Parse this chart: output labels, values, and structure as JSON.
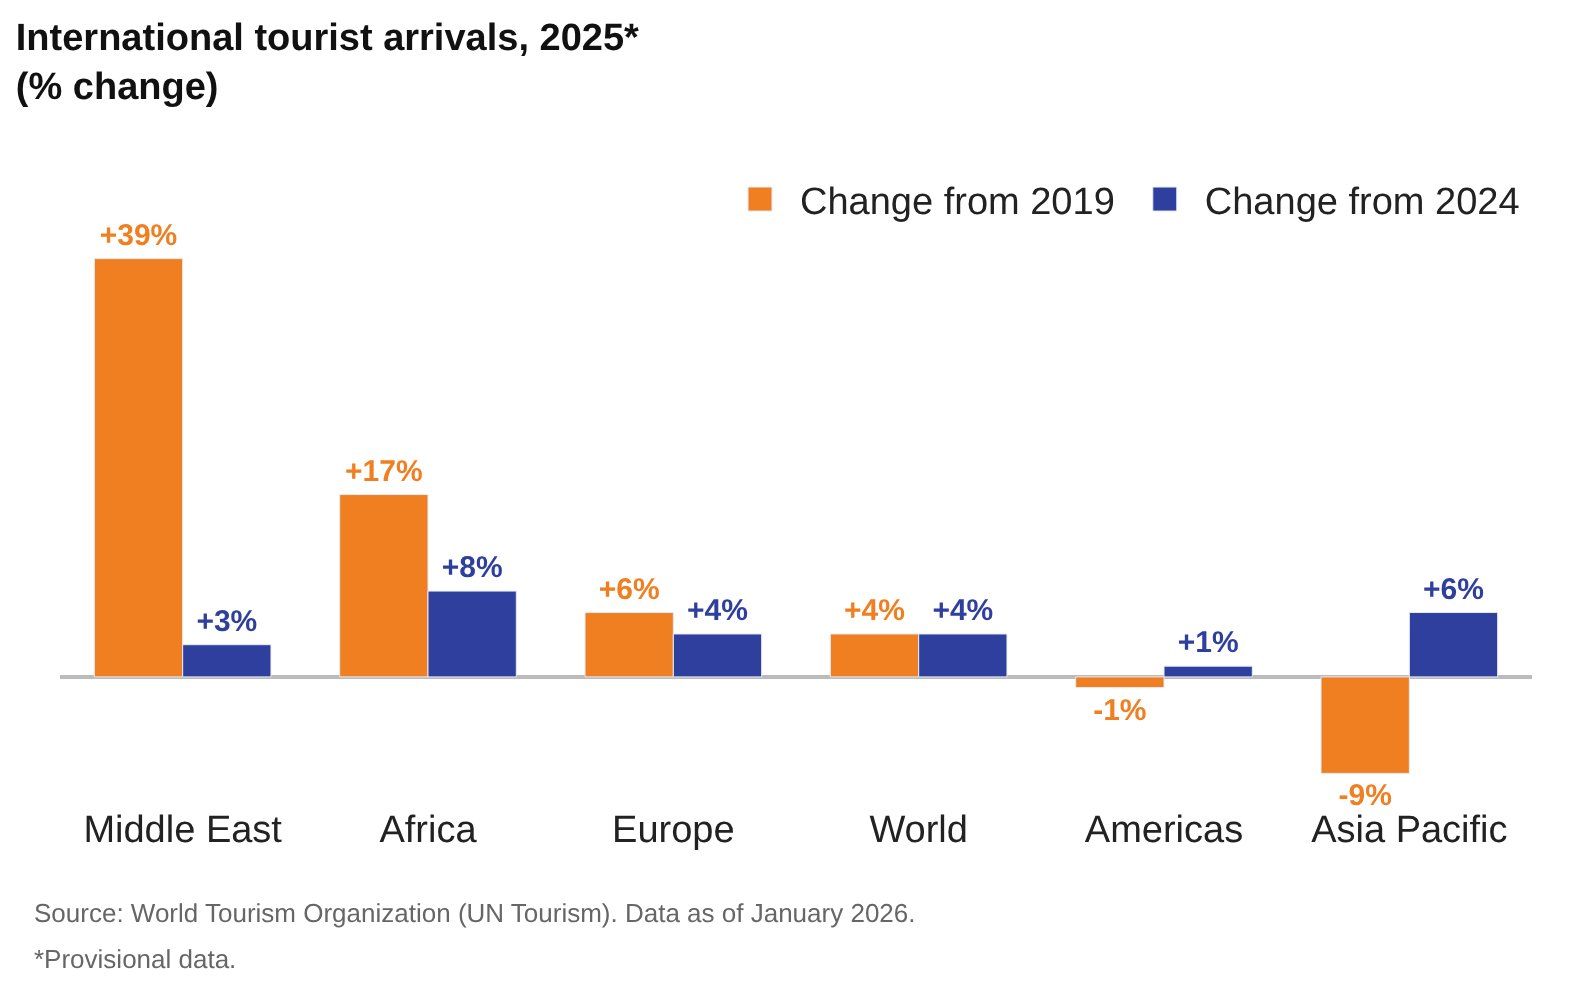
{
  "chart_data": {
    "type": "bar",
    "title": "International tourist arrivals, 2025*\n(% change)",
    "categories": [
      "Middle East",
      "Africa",
      "Europe",
      "World",
      "Americas",
      "Asia Pacific"
    ],
    "series": [
      {
        "name": "Change from 2019",
        "color": "#f07f22",
        "values": [
          39,
          17,
          6,
          4,
          -1,
          -9
        ],
        "value_labels": [
          "+39%",
          "+17%",
          "+6%",
          "+4%",
          "-1%",
          "-9%"
        ]
      },
      {
        "name": "Change from 2024",
        "color": "#2e3f9e",
        "values": [
          3,
          8,
          4,
          4,
          1,
          6
        ],
        "value_labels": [
          "+3%",
          "+8%",
          "+4%",
          "+4%",
          "+1%",
          "+6%"
        ]
      }
    ],
    "tick_labels": "x",
    "legend": "top right",
    "annotations": [
      "Source: World Tourism Organization (UN Tourism). Data as of January 2026.",
      "*Provisional data."
    ]
  }
}
